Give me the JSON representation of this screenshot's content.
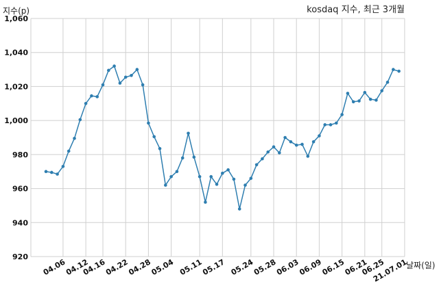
{
  "chart_data": {
    "type": "line",
    "title": "kosdaq 지수, 최근 3개월",
    "ylabel": "지수(p)",
    "xlabel": "날짜(일)",
    "ylim": [
      920,
      1060
    ],
    "yticks": [
      920,
      940,
      960,
      980,
      1000,
      1020,
      1040,
      1060
    ],
    "ytick_labels": [
      "920",
      "940",
      "960",
      "980",
      "1,000",
      "1,020",
      "1,040",
      "1,060"
    ],
    "xtick_labels": [
      "04.06",
      "04.12",
      "04.16",
      "04.22",
      "04.28",
      "05.04",
      "05.11",
      "05.17",
      "05.24",
      "05.28",
      "06.03",
      "06.09",
      "06.15",
      "06.21",
      "06.25",
      "21.07.01"
    ],
    "xtick_positions": [
      3,
      7,
      10,
      14,
      18,
      22,
      27,
      31,
      36,
      40,
      44,
      48,
      52,
      56,
      59,
      63
    ],
    "grid": true,
    "series": [
      {
        "color": "#2e7eb0",
        "values": [
          970,
          969.5,
          968.5,
          973,
          982,
          989.5,
          1000.5,
          1010,
          1014.5,
          1014,
          1021,
          1029.5,
          1032,
          1022,
          1025.5,
          1026.5,
          1030,
          1021,
          998.5,
          990.5,
          983.5,
          962,
          967,
          970,
          978,
          992.5,
          978.5,
          967,
          952,
          967,
          962.5,
          969,
          971,
          965.5,
          948,
          962,
          966,
          974,
          977.5,
          981.5,
          984.5,
          981,
          990,
          987.5,
          985.5,
          986,
          979,
          987.5,
          991,
          997.5,
          997.5,
          998.5,
          1003.5,
          1016,
          1011,
          1011.5,
          1016.5,
          1012.5,
          1012,
          1017.5,
          1022.5,
          1030,
          1029
        ]
      }
    ]
  }
}
